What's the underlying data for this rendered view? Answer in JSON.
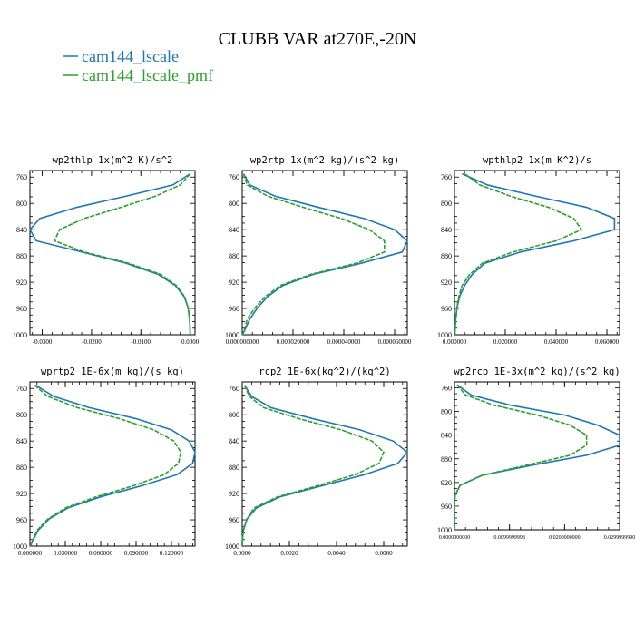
{
  "figure": {
    "title": "CLUBB VAR at270E,-20N",
    "legend": [
      {
        "name": "cam144_lscale",
        "color": "#1f77b4"
      },
      {
        "name": "cam144_lscale_pmf",
        "color": "#2ca02c"
      }
    ]
  },
  "chart_data": [
    {
      "type": "line",
      "title": "wp2thlp  1x(m^2 K)/s^2",
      "xlim": [
        -0.0325,
        0.001
      ],
      "ylim": [
        1000,
        750
      ],
      "xticks": [
        -0.03,
        -0.02,
        -0.01,
        0.0
      ],
      "xtick_labels": [
        "-0.0300",
        "-0.0200",
        "-0.0100",
        "0.0000"
      ],
      "yticks": [
        760,
        800,
        840,
        880,
        920,
        960,
        1000
      ],
      "series": [
        {
          "name": "cam144_lscale",
          "color": "#1f77b4",
          "y": [
            755,
            772,
            789,
            806,
            823,
            840,
            857,
            874,
            891,
            908,
            925,
            942,
            959,
            976,
            993,
            1000
          ],
          "x": [
            0.0,
            -0.0035,
            -0.013,
            -0.023,
            -0.0305,
            -0.0325,
            -0.0312,
            -0.022,
            -0.013,
            -0.0065,
            -0.003,
            -0.0012,
            -0.0004,
            -0.0001,
            0.0,
            0.0
          ]
        },
        {
          "name": "cam144_lscale_pmf",
          "color": "#2ca02c",
          "y": [
            755,
            772,
            789,
            806,
            823,
            840,
            857,
            874,
            891,
            908,
            925,
            942,
            959,
            976,
            993,
            1000
          ],
          "x": [
            0.0,
            -0.002,
            -0.007,
            -0.014,
            -0.0215,
            -0.0265,
            -0.0275,
            -0.0215,
            -0.0125,
            -0.006,
            -0.0028,
            -0.0011,
            -0.0004,
            -0.0001,
            0.0,
            0.0
          ]
        }
      ]
    },
    {
      "type": "line",
      "title": "wp2rtp  1x(m^2 kg)/(s^2 kg)",
      "xlim": [
        0,
        6.5e-05
      ],
      "ylim": [
        1000,
        750
      ],
      "xticks": [
        0,
        2e-05,
        4e-05,
        6e-05
      ],
      "xtick_labels": [
        "0.000000000",
        "0.000020000",
        "0.000040000",
        "0.000060000"
      ],
      "yticks": [
        760,
        800,
        840,
        880,
        920,
        960,
        1000
      ],
      "series": [
        {
          "name": "cam144_lscale",
          "color": "#1f77b4",
          "y": [
            755,
            772,
            789,
            806,
            823,
            840,
            857,
            874,
            891,
            908,
            925,
            942,
            959,
            976,
            993,
            1000
          ],
          "x": [
            5e-07,
            3e-06,
            1.3e-05,
            3e-05,
            4.8e-05,
            6e-05,
            6.5e-05,
            6.3e-05,
            4.7e-05,
            2.8e-05,
            1.6e-05,
            1e-05,
            6e-06,
            3e-06,
            1e-06,
            1e-07
          ]
        },
        {
          "name": "cam144_lscale_pmf",
          "color": "#2ca02c",
          "y": [
            755,
            772,
            789,
            806,
            823,
            840,
            857,
            874,
            891,
            908,
            925,
            942,
            959,
            976,
            993,
            1000
          ],
          "x": [
            5e-07,
            2e-06,
            1e-05,
            2.4e-05,
            3.9e-05,
            5e-05,
            5.6e-05,
            5.6e-05,
            4.5e-05,
            2.7e-05,
            1.5e-05,
            9e-06,
            5e-06,
            2e-06,
            8e-07,
            1e-07
          ]
        }
      ]
    },
    {
      "type": "line",
      "title": "wpthlp2  1x(m K^2)/s",
      "xlim": [
        0,
        0.065
      ],
      "ylim": [
        1000,
        750
      ],
      "xticks": [
        0,
        0.02,
        0.04,
        0.06
      ],
      "xtick_labels": [
        "0.000000",
        "0.020000",
        "0.040000",
        "0.060000"
      ],
      "yticks": [
        760,
        800,
        840,
        880,
        920,
        960,
        1000
      ],
      "series": [
        {
          "name": "cam144_lscale",
          "color": "#1f77b4",
          "y": [
            755,
            772,
            789,
            806,
            823,
            840,
            857,
            874,
            891,
            908,
            925,
            942,
            959,
            976,
            993,
            1000
          ],
          "x": [
            0.003,
            0.013,
            0.032,
            0.052,
            0.063,
            0.063,
            0.047,
            0.026,
            0.012,
            0.007,
            0.004,
            0.002,
            0.001,
            0.0005,
            0.0002,
            0.0001
          ]
        },
        {
          "name": "cam144_lscale_pmf",
          "color": "#2ca02c",
          "y": [
            755,
            772,
            789,
            806,
            823,
            840,
            857,
            874,
            891,
            908,
            925,
            942,
            959,
            976,
            993,
            1000
          ],
          "x": [
            0.004,
            0.01,
            0.022,
            0.037,
            0.047,
            0.05,
            0.04,
            0.023,
            0.011,
            0.006,
            0.003,
            0.0017,
            0.0009,
            0.0004,
            0.0002,
            0.0001
          ]
        }
      ]
    },
    {
      "type": "line",
      "title": "wprtp2  1E-6x(m kg)/(s kg)",
      "xlim": [
        0,
        0.14
      ],
      "ylim": [
        1000,
        750
      ],
      "xticks": [
        0,
        0.03,
        0.06,
        0.09,
        0.12
      ],
      "xtick_labels": [
        "0.000000",
        "0.030000",
        "0.060000",
        "0.090000",
        "0.120000"
      ],
      "yticks": [
        760,
        800,
        840,
        880,
        920,
        960,
        1000
      ],
      "series": [
        {
          "name": "cam144_lscale",
          "color": "#1f77b4",
          "y": [
            755,
            772,
            789,
            806,
            823,
            840,
            857,
            874,
            891,
            908,
            925,
            942,
            959,
            976,
            993,
            1000
          ],
          "x": [
            0.005,
            0.02,
            0.05,
            0.09,
            0.12,
            0.135,
            0.14,
            0.138,
            0.125,
            0.095,
            0.06,
            0.032,
            0.016,
            0.007,
            0.002,
            0.0005
          ]
        },
        {
          "name": "cam144_lscale_pmf",
          "color": "#2ca02c",
          "y": [
            755,
            772,
            789,
            806,
            823,
            840,
            857,
            874,
            891,
            908,
            925,
            942,
            959,
            976,
            993,
            1000
          ],
          "x": [
            0.004,
            0.015,
            0.04,
            0.076,
            0.105,
            0.122,
            0.128,
            0.126,
            0.114,
            0.088,
            0.056,
            0.03,
            0.015,
            0.006,
            0.002,
            0.0004
          ]
        }
      ]
    },
    {
      "type": "line",
      "title": "rcp2  1E-6x(kg^2)/(kg^2)",
      "xlim": [
        0,
        0.007
      ],
      "ylim": [
        1000,
        750
      ],
      "xticks": [
        0,
        0.002,
        0.004,
        0.006
      ],
      "xtick_labels": [
        "0.0000",
        "0.0020",
        "0.0040",
        "0.0060"
      ],
      "yticks": [
        760,
        800,
        840,
        880,
        920,
        960,
        1000
      ],
      "series": [
        {
          "name": "cam144_lscale",
          "color": "#1f77b4",
          "y": [
            755,
            772,
            789,
            806,
            823,
            840,
            857,
            874,
            891,
            908,
            925,
            942,
            959,
            976,
            993,
            1000
          ],
          "x": [
            0.0001,
            0.0004,
            0.0012,
            0.003,
            0.005,
            0.0064,
            0.007,
            0.0066,
            0.0052,
            0.0034,
            0.0016,
            0.0006,
            0.0002,
            5e-05,
            0.0,
            0.0
          ]
        },
        {
          "name": "cam144_lscale_pmf",
          "color": "#2ca02c",
          "y": [
            755,
            772,
            789,
            806,
            823,
            840,
            857,
            874,
            891,
            908,
            925,
            942,
            959,
            976,
            993,
            1000
          ],
          "x": [
            0.0001,
            0.0003,
            0.0009,
            0.0024,
            0.0042,
            0.0055,
            0.006,
            0.0058,
            0.0048,
            0.0032,
            0.0015,
            0.0005,
            0.0002,
            5e-05,
            0.0,
            0.0
          ]
        }
      ]
    },
    {
      "type": "line",
      "title": "wp2rcp  1E-3x(m^2 kg)/(s^2 kg)",
      "xlim": [
        0,
        0.029999999
      ],
      "ylim": [
        1000,
        750
      ],
      "xticks": [
        0,
        0.0099999998,
        0.02,
        0.029999999
      ],
      "xtick_labels": [
        "0.0000000000",
        "0.0099999998",
        "0.0200000000",
        "0.0299999990"
      ],
      "yticks": [
        760,
        800,
        840,
        880,
        920,
        960,
        1000
      ],
      "series": [
        {
          "name": "cam144_lscale",
          "color": "#1f77b4",
          "y": [
            755,
            772,
            789,
            806,
            823,
            840,
            857,
            874,
            891,
            908,
            925,
            942,
            959,
            976,
            993,
            1000
          ],
          "x": [
            0.0005,
            0.003,
            0.01,
            0.02,
            0.026,
            0.03,
            0.03,
            0.024,
            0.014,
            0.005,
            0.001,
            0.0001,
            0.0,
            0.0,
            0.0,
            0.0
          ]
        },
        {
          "name": "cam144_lscale_pmf",
          "color": "#2ca02c",
          "y": [
            755,
            772,
            789,
            806,
            823,
            840,
            857,
            874,
            891,
            908,
            925,
            942,
            959,
            976,
            993,
            1000
          ],
          "x": [
            0.0005,
            0.002,
            0.007,
            0.015,
            0.021,
            0.024,
            0.024,
            0.021,
            0.013,
            0.005,
            0.001,
            0.0001,
            0.0,
            0.0,
            0.0,
            0.0
          ]
        }
      ]
    }
  ]
}
